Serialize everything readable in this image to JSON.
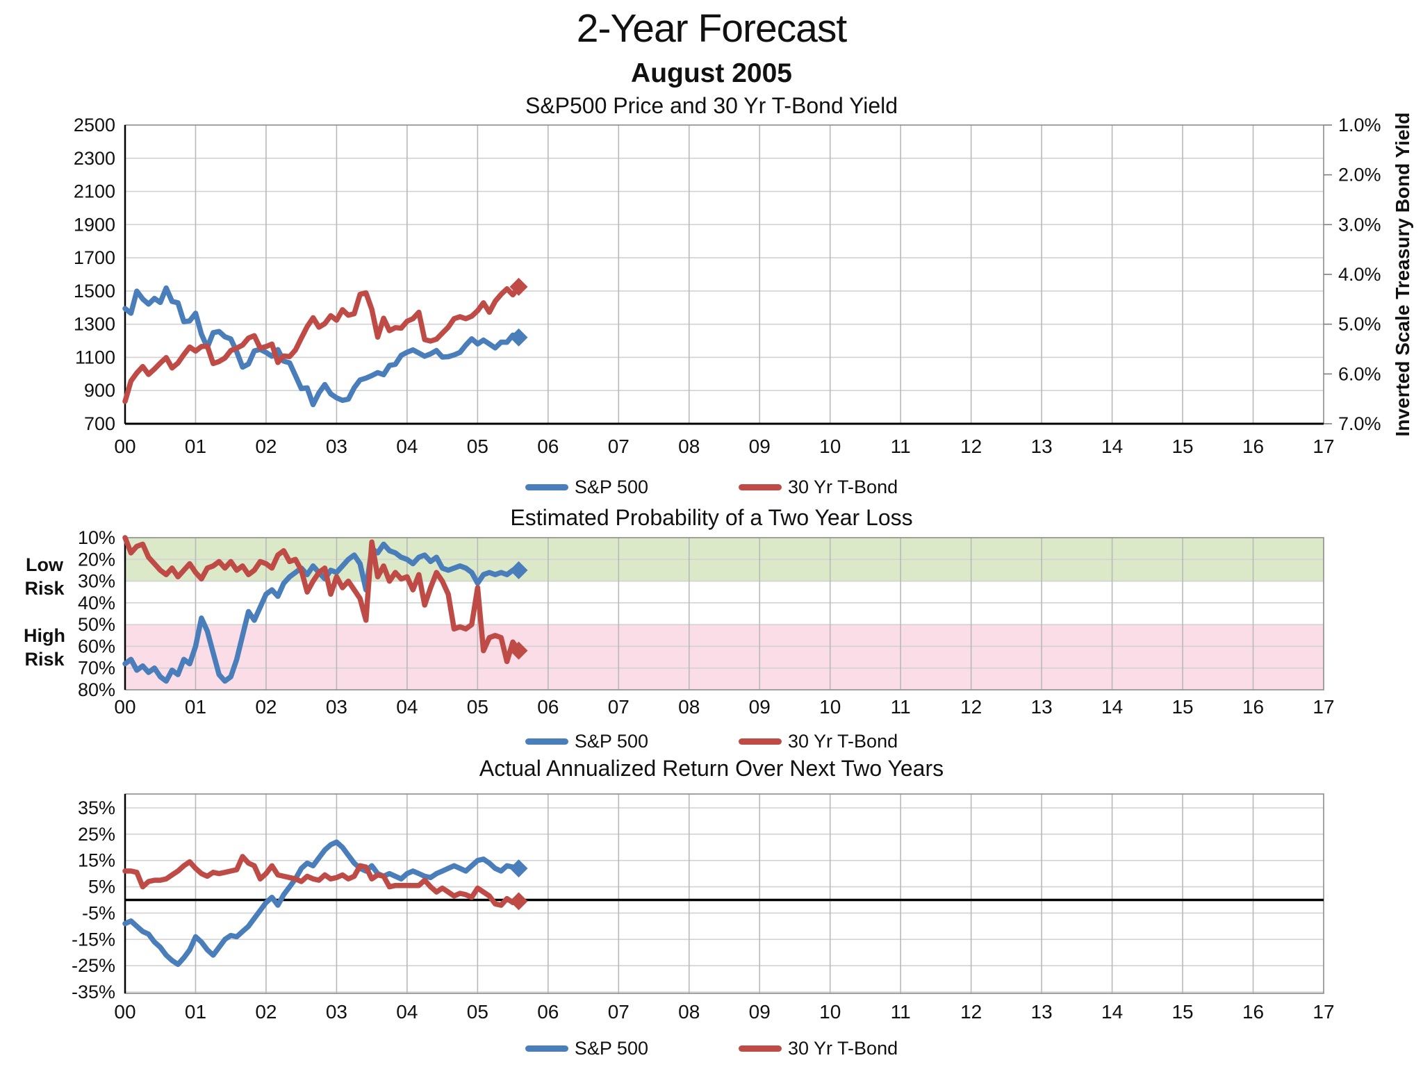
{
  "page": {
    "title": "2-Year Forecast",
    "subtitle": "August 2005"
  },
  "chart_data": [
    {
      "type": "line",
      "title": "S&P500 Price and 30 Yr T-Bond Yield",
      "x_labels": [
        "00",
        "01",
        "02",
        "03",
        "04",
        "05",
        "06",
        "07",
        "08",
        "09",
        "10",
        "11",
        "12",
        "13",
        "14",
        "15",
        "16",
        "17"
      ],
      "x_start": 0,
      "x_step": 0.0833333,
      "y_left": {
        "min": 700,
        "max": 2500,
        "inverted": false,
        "ticks": [
          2500,
          2300,
          2100,
          1900,
          1700,
          1500,
          1300,
          1100,
          900,
          700
        ],
        "labels": [
          "2500",
          "2300",
          "2100",
          "1900",
          "1700",
          "1500",
          "1300",
          "1100",
          "900",
          "700"
        ]
      },
      "y_right": {
        "min": 1,
        "max": 7,
        "inverted": true,
        "ticks": [
          1,
          2,
          3,
          4,
          5,
          6,
          7
        ],
        "labels": [
          "1.0%",
          "2.0%",
          "3.0%",
          "4.0%",
          "5.0%",
          "6.0%",
          "7.0%"
        ],
        "title": "Inverted Scale Treasury Bond Yield"
      },
      "series": [
        {
          "label": "S&P 500",
          "color": "#4a7ebb",
          "axis": "left",
          "end_marker": "diamond",
          "values": [
            1394,
            1366,
            1499,
            1452,
            1421,
            1455,
            1431,
            1518,
            1437,
            1429,
            1315,
            1320,
            1366,
            1240,
            1160,
            1249,
            1256,
            1224,
            1211,
            1134,
            1041,
            1060,
            1139,
            1148,
            1130,
            1107,
            1147,
            1077,
            1067,
            990,
            912,
            916,
            815,
            886,
            936,
            880,
            856,
            841,
            848,
            917,
            964,
            975,
            990,
            1008,
            996,
            1051,
            1058,
            1112,
            1131,
            1145,
            1126,
            1107,
            1121,
            1141,
            1102,
            1104,
            1115,
            1130,
            1174,
            1212,
            1181,
            1204,
            1181,
            1157,
            1192,
            1191,
            1234,
            1220
          ]
        },
        {
          "label": "30 Yr T-Bond",
          "color": "#bf4b47",
          "axis": "right",
          "end_marker": "diamond",
          "values": [
            6.55,
            6.14,
            5.98,
            5.85,
            6.01,
            5.9,
            5.78,
            5.67,
            5.88,
            5.78,
            5.61,
            5.46,
            5.54,
            5.45,
            5.44,
            5.79,
            5.75,
            5.68,
            5.53,
            5.48,
            5.42,
            5.28,
            5.23,
            5.48,
            5.45,
            5.4,
            5.77,
            5.64,
            5.65,
            5.52,
            5.28,
            5.05,
            4.87,
            5.06,
            4.99,
            4.83,
            4.92,
            4.71,
            4.82,
            4.79,
            4.4,
            4.37,
            4.7,
            5.26,
            4.88,
            5.13,
            5.07,
            5.08,
            4.94,
            4.89,
            4.76,
            5.31,
            5.34,
            5.3,
            5.18,
            5.06,
            4.89,
            4.85,
            4.89,
            4.84,
            4.73,
            4.57,
            4.76,
            4.54,
            4.4,
            4.29,
            4.41,
            4.25
          ]
        }
      ],
      "legend": [
        "S&P 500",
        "30 Yr T-Bond"
      ]
    },
    {
      "type": "line",
      "title": "Estimated Probability of a Two Year Loss",
      "x_labels": [
        "00",
        "01",
        "02",
        "03",
        "04",
        "05",
        "06",
        "07",
        "08",
        "09",
        "10",
        "11",
        "12",
        "13",
        "14",
        "15",
        "16",
        "17"
      ],
      "x_start": 0,
      "x_step": 0.0833333,
      "y_left": {
        "min": 10,
        "max": 80,
        "inverted": true,
        "ticks": [
          10,
          20,
          30,
          40,
          50,
          60,
          70,
          80
        ],
        "labels": [
          "10%",
          "20%",
          "30%",
          "40%",
          "50%",
          "60%",
          "70%",
          "80%"
        ]
      },
      "bands": [
        {
          "from": 10,
          "to": 30,
          "color": "#dce9c8",
          "label": "Low Risk"
        },
        {
          "from": 50,
          "to": 80,
          "color": "#fbdde8",
          "label": "High Risk"
        }
      ],
      "risk_labels": [
        [
          "Low",
          "Risk"
        ],
        [
          "High",
          "Risk"
        ]
      ],
      "series": [
        {
          "label": "S&P 500",
          "color": "#4a7ebb",
          "axis": "left",
          "end_marker": "diamond",
          "values": [
            68,
            66,
            71,
            69,
            72,
            70,
            74,
            76,
            71,
            73,
            66,
            68,
            60,
            47,
            53,
            63,
            73,
            76,
            74,
            66,
            55,
            44,
            48,
            42,
            36,
            34,
            37,
            31,
            28,
            26,
            24,
            27,
            23,
            26,
            29,
            25,
            26,
            23,
            20,
            18,
            22,
            34,
            15,
            17,
            13,
            16,
            17,
            19,
            20,
            22,
            19,
            18,
            21,
            19,
            24,
            25,
            24,
            23,
            24,
            26,
            31,
            27,
            26,
            27,
            26,
            27,
            25,
            25
          ]
        },
        {
          "label": "30 Yr T-Bond",
          "color": "#bf4b47",
          "axis": "left",
          "end_marker": "diamond",
          "values": [
            10,
            17,
            14,
            13,
            19,
            22,
            25,
            27,
            24,
            28,
            25,
            22,
            26,
            29,
            24,
            23,
            21,
            24,
            21,
            25,
            23,
            27,
            25,
            21,
            22,
            24,
            18,
            16,
            21,
            20,
            25,
            35,
            30,
            26,
            24,
            36,
            28,
            33,
            30,
            34,
            38,
            48,
            12,
            28,
            23,
            30,
            26,
            29,
            28,
            34,
            27,
            41,
            33,
            26,
            30,
            36,
            52,
            51,
            52,
            50,
            33,
            62,
            56,
            55,
            56,
            67,
            58,
            62
          ]
        }
      ],
      "legend": [
        "S&P 500",
        "30 Yr T-Bond"
      ]
    },
    {
      "type": "line",
      "title": "Actual Annualized Return Over Next Two Years",
      "x_labels": [
        "00",
        "01",
        "02",
        "03",
        "04",
        "05",
        "06",
        "07",
        "08",
        "09",
        "10",
        "11",
        "12",
        "13",
        "14",
        "15",
        "16",
        "17"
      ],
      "x_start": 0,
      "x_step": 0.0833333,
      "y_left": {
        "min": -35,
        "max": 35,
        "inverted": false,
        "ticks": [
          35,
          25,
          15,
          5,
          -5,
          -15,
          -25,
          -35
        ],
        "labels": [
          "35%",
          "25%",
          "15%",
          "5%",
          "-5%",
          "-15%",
          "-25%",
          "-35%"
        ]
      },
      "zero_line": true,
      "series": [
        {
          "label": "S&P 500",
          "color": "#4a7ebb",
          "axis": "left",
          "end_marker": "diamond",
          "values": [
            -9,
            -8,
            -10,
            -12,
            -13,
            -16,
            -18,
            -21,
            -23,
            -24.5,
            -22,
            -19,
            -14,
            -16,
            -19,
            -21,
            -18,
            -15,
            -13.5,
            -14,
            -12,
            -10,
            -7,
            -4,
            -1,
            1,
            -2,
            2,
            5,
            8,
            12,
            14,
            13,
            16,
            19,
            21,
            22,
            20,
            17,
            14,
            12,
            11,
            13,
            10,
            9,
            10,
            9,
            8,
            10,
            11,
            10,
            9,
            8.5,
            10,
            11,
            12,
            13,
            12,
            11,
            13,
            15,
            15.5,
            14,
            12,
            11,
            13,
            12.5,
            12
          ]
        },
        {
          "label": "30 Yr T-Bond",
          "color": "#bf4b47",
          "axis": "left",
          "end_marker": "diamond",
          "values": [
            11,
            11,
            10.5,
            5,
            7,
            7.5,
            7.5,
            8,
            9.5,
            11,
            13,
            14.5,
            12,
            10,
            9,
            10.5,
            10,
            10.5,
            11,
            11.5,
            16.5,
            14,
            13,
            8,
            10,
            13,
            9.5,
            9,
            8.5,
            8,
            7,
            9,
            8,
            7.5,
            9.5,
            8,
            8.5,
            9.5,
            8,
            9,
            13,
            12.5,
            8,
            9.5,
            9,
            5,
            5.5,
            5.5,
            5.5,
            5.5,
            5.5,
            7.5,
            5,
            3,
            4.5,
            3,
            1.5,
            2.5,
            2,
            1,
            4.5,
            3,
            1.5,
            -1.5,
            -2,
            0.5,
            -1,
            -0.5
          ]
        }
      ],
      "legend": [
        "S&P 500",
        "30 Yr T-Bond"
      ]
    }
  ],
  "colors": {
    "sp500_line": "#4a7ebb",
    "tbond_line": "#bf4b47",
    "low_risk_band": "#dce9c8",
    "high_risk_band": "#fbdde8"
  }
}
